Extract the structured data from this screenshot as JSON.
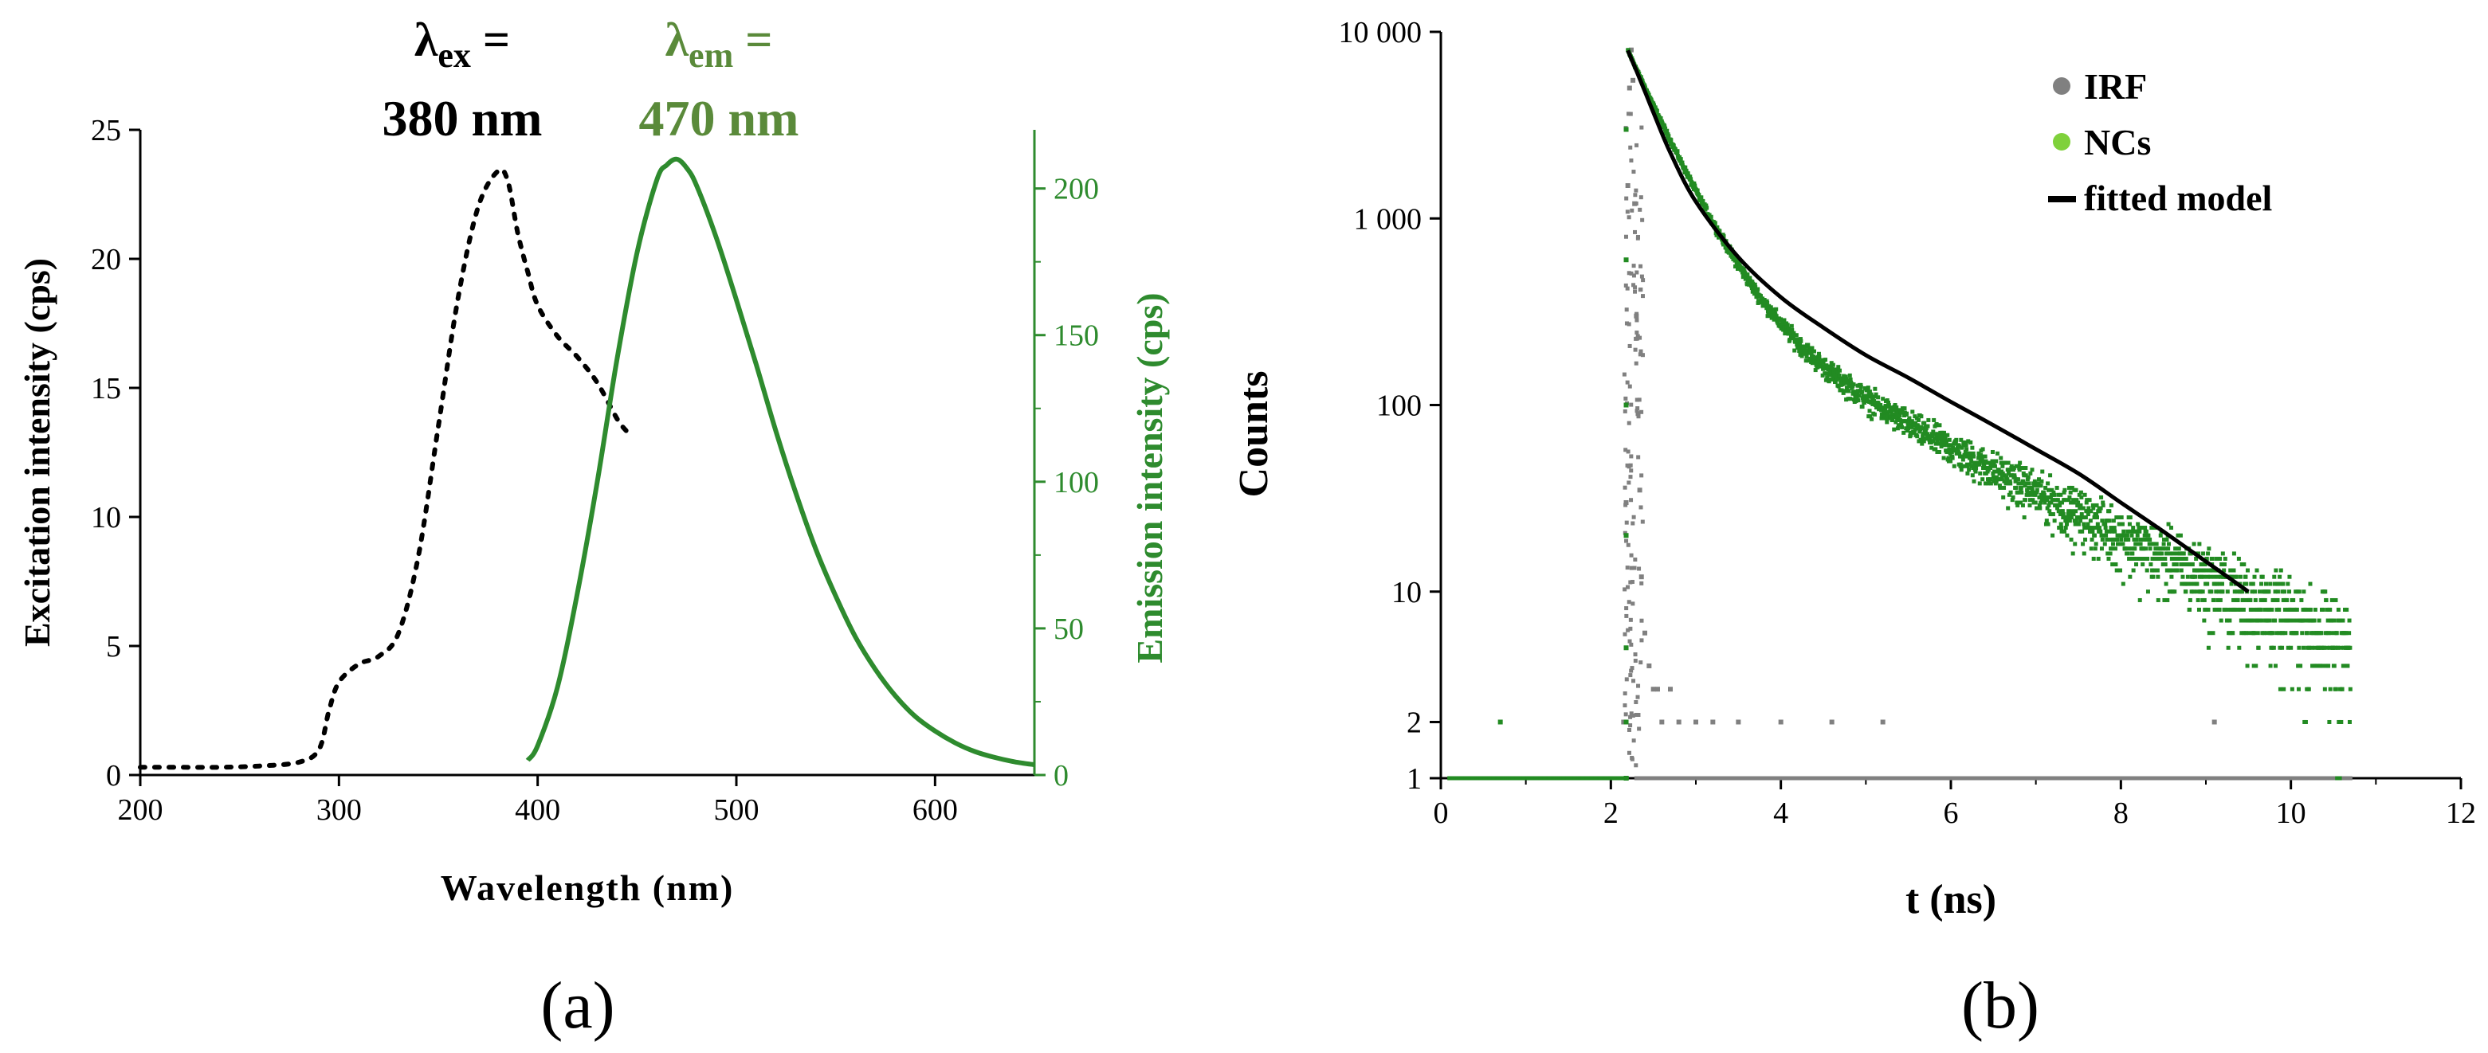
{
  "colors": {
    "excitation": "#000000",
    "emission": "#2e8b2e",
    "emission_label": "#5a8a3a",
    "irf": "#808080",
    "ncs_legend": "#7fd13b",
    "ncs_points": "#228b22",
    "fit": "#000000"
  },
  "panel_a": {
    "label": "(a)",
    "annotation_ex": {
      "symbol": "λ",
      "subscript": "ex",
      "suffix": " =",
      "value": "380 nm"
    },
    "annotation_em": {
      "symbol": "λ",
      "subscript": "em",
      "suffix": " =",
      "value": "470 nm"
    },
    "chart_data": {
      "type": "line",
      "xlabel": "Wavelength (nm)",
      "ylabel_left": "Excitation intensity (cps)",
      "ylabel_right": "Emission intensity (cps)",
      "xlim": [
        200,
        650
      ],
      "ylim_left": [
        0,
        25
      ],
      "ylim_right": [
        0,
        220
      ],
      "xticks": [
        200,
        300,
        400,
        500,
        600
      ],
      "yticks_left": [
        0,
        5,
        10,
        15,
        20,
        25
      ],
      "yticks_right": [
        0,
        50,
        100,
        150,
        200
      ],
      "grid": false,
      "series": [
        {
          "name": "Excitation",
          "axis": "left",
          "style": "dotted",
          "x": [
            200,
            220,
            240,
            260,
            280,
            290,
            295,
            300,
            310,
            320,
            330,
            340,
            350,
            360,
            370,
            380,
            385,
            390,
            395,
            400,
            410,
            420,
            430,
            440,
            445
          ],
          "y": [
            0.3,
            0.3,
            0.3,
            0.35,
            0.5,
            1.0,
            2.5,
            3.6,
            4.3,
            4.6,
            5.5,
            8.5,
            13.5,
            18.5,
            22.0,
            23.4,
            23.0,
            21.0,
            19.5,
            18.2,
            17.0,
            16.2,
            15.2,
            13.8,
            13.3
          ]
        },
        {
          "name": "Emission",
          "axis": "right",
          "style": "solid",
          "x": [
            395,
            400,
            410,
            420,
            430,
            440,
            450,
            460,
            465,
            470,
            475,
            480,
            490,
            500,
            510,
            520,
            530,
            540,
            550,
            560,
            570,
            580,
            590,
            600,
            610,
            620,
            630,
            640,
            650
          ],
          "y": [
            5,
            10,
            30,
            62,
            100,
            142,
            178,
            203,
            208,
            210,
            207,
            201,
            183,
            162,
            140,
            117,
            96,
            77,
            61,
            47,
            36,
            27,
            20,
            15,
            11,
            8,
            6,
            4.5,
            3.5
          ]
        }
      ]
    }
  },
  "panel_b": {
    "label": "(b)",
    "chart_data": {
      "type": "scatter",
      "xlabel": "t (ns)",
      "ylabel": "Counts",
      "xlim": [
        0,
        12
      ],
      "ylim": [
        1,
        10000
      ],
      "yscale": "log",
      "xticks": [
        0,
        2,
        4,
        6,
        8,
        10,
        12
      ],
      "yticks": [
        1,
        10,
        100,
        1000,
        10000
      ],
      "ytick_labels": [
        "1",
        "10",
        "100",
        "1 000",
        "10 000"
      ],
      "ytick_extra": [
        2
      ],
      "ytick_extra_labels": [
        "2"
      ],
      "legend_position": "top-right",
      "grid": false,
      "series": [
        {
          "name": "IRF",
          "kind": "points",
          "x": [
            2.15,
            2.18,
            2.2,
            2.22,
            2.24,
            2.26,
            2.28,
            2.3,
            2.32,
            2.34,
            2.36,
            2.4,
            2.45,
            2.5,
            2.55,
            2.6,
            2.7,
            2.8,
            3.0,
            3.2,
            3.5,
            4.0,
            4.6,
            5.2,
            9.1
          ],
          "y": [
            2,
            30,
            1500,
            5000,
            8000,
            5500,
            1200,
            300,
            90,
            35,
            12,
            6,
            4,
            3,
            3,
            2,
            3,
            2,
            2,
            2,
            2,
            2,
            2,
            2,
            2
          ]
        },
        {
          "name": "NCs",
          "kind": "points",
          "model": "biexponential",
          "t0": 2.2,
          "x_end": 10.7,
          "amplitudes": [
            7500,
            450
          ],
          "lifetimes_ns": [
            0.42,
            1.85
          ],
          "offset": 1.5
        },
        {
          "name": "fitted model",
          "kind": "line",
          "x": [
            2.2,
            2.25,
            2.3,
            2.4,
            2.5,
            2.7,
            3.0,
            3.5,
            4.0,
            4.5,
            5.0,
            5.5,
            6.0,
            6.5,
            7.0,
            7.5,
            8.0,
            8.5,
            9.0,
            9.5
          ],
          "y": [
            7950,
            7000,
            6200,
            4800,
            3700,
            2250,
            1230,
            620,
            378,
            260,
            185,
            140,
            104,
            78,
            58,
            43,
            30,
            21,
            14.5,
            10
          ]
        }
      ]
    }
  }
}
